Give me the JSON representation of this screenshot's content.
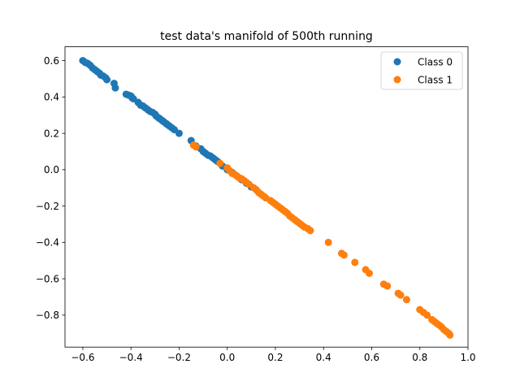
{
  "chart_data": {
    "type": "scatter",
    "title": "test data's manifold of 500th running",
    "xlabel": "",
    "ylabel": "",
    "xlim": [
      -0.674,
      1.0
    ],
    "ylim": [
      -0.976,
      0.676
    ],
    "xticks": [
      -0.6,
      -0.4,
      -0.2,
      0.0,
      0.2,
      0.4,
      0.6,
      0.8,
      1.0
    ],
    "yticks": [
      -0.8,
      -0.6,
      -0.4,
      -0.2,
      0.0,
      0.2,
      0.4,
      0.6
    ],
    "xtick_labels": [
      "−0.6",
      "−0.4",
      "−0.2",
      "0.0",
      "0.2",
      "0.4",
      "0.6",
      "0.8",
      "1.0"
    ],
    "ytick_labels": [
      "−0.8",
      "−0.6",
      "−0.4",
      "−0.2",
      "0.0",
      "0.2",
      "0.4",
      "0.6"
    ],
    "grid": false,
    "legend_position": "top-right",
    "series": [
      {
        "name": "Class 0",
        "color": "#1f77b4",
        "points": [
          [
            -0.6,
            0.6
          ],
          [
            -0.59,
            0.59
          ],
          [
            -0.58,
            0.585
          ],
          [
            -0.57,
            0.575
          ],
          [
            -0.56,
            0.56
          ],
          [
            -0.55,
            0.55
          ],
          [
            -0.54,
            0.54
          ],
          [
            -0.53,
            0.53
          ],
          [
            -0.525,
            0.52
          ],
          [
            -0.515,
            0.515
          ],
          [
            -0.505,
            0.505
          ],
          [
            -0.5,
            0.495
          ],
          [
            -0.47,
            0.475
          ],
          [
            -0.465,
            0.45
          ],
          [
            -0.42,
            0.415
          ],
          [
            -0.41,
            0.41
          ],
          [
            -0.4,
            0.405
          ],
          [
            -0.395,
            0.395
          ],
          [
            -0.39,
            0.39
          ],
          [
            -0.37,
            0.37
          ],
          [
            -0.36,
            0.355
          ],
          [
            -0.35,
            0.35
          ],
          [
            -0.34,
            0.34
          ],
          [
            -0.33,
            0.33
          ],
          [
            -0.32,
            0.32
          ],
          [
            -0.31,
            0.315
          ],
          [
            -0.3,
            0.305
          ],
          [
            -0.295,
            0.295
          ],
          [
            -0.285,
            0.285
          ],
          [
            -0.28,
            0.28
          ],
          [
            -0.27,
            0.27
          ],
          [
            -0.265,
            0.265
          ],
          [
            -0.255,
            0.255
          ],
          [
            -0.25,
            0.25
          ],
          [
            -0.24,
            0.24
          ],
          [
            -0.23,
            0.23
          ],
          [
            -0.22,
            0.22
          ],
          [
            -0.2,
            0.2
          ],
          [
            -0.15,
            0.16
          ],
          [
            -0.13,
            0.13
          ],
          [
            -0.11,
            0.115
          ],
          [
            -0.1,
            0.1
          ],
          [
            -0.09,
            0.09
          ],
          [
            -0.08,
            0.08
          ],
          [
            -0.07,
            0.075
          ],
          [
            -0.06,
            0.065
          ],
          [
            -0.05,
            0.055
          ],
          [
            -0.04,
            0.045
          ],
          [
            -0.02,
            0.02
          ],
          [
            0.0,
            0.0
          ],
          [
            0.02,
            -0.015
          ],
          [
            0.04,
            -0.035
          ],
          [
            0.06,
            -0.055
          ],
          [
            0.08,
            -0.075
          ],
          [
            0.1,
            -0.095
          ]
        ]
      },
      {
        "name": "Class 1",
        "color": "#ff7f0e",
        "points": [
          [
            -0.14,
            0.135
          ],
          [
            -0.13,
            0.125
          ],
          [
            -0.03,
            0.035
          ],
          [
            0.0,
            0.01
          ],
          [
            0.01,
            -0.005
          ],
          [
            0.02,
            -0.02
          ],
          [
            0.03,
            -0.025
          ],
          [
            0.04,
            -0.035
          ],
          [
            0.05,
            -0.045
          ],
          [
            0.06,
            -0.05
          ],
          [
            0.07,
            -0.06
          ],
          [
            0.08,
            -0.07
          ],
          [
            0.09,
            -0.08
          ],
          [
            0.11,
            -0.1
          ],
          [
            0.12,
            -0.11
          ],
          [
            0.13,
            -0.125
          ],
          [
            0.14,
            -0.135
          ],
          [
            0.15,
            -0.145
          ],
          [
            0.16,
            -0.155
          ],
          [
            0.18,
            -0.17
          ],
          [
            0.19,
            -0.18
          ],
          [
            0.2,
            -0.19
          ],
          [
            0.21,
            -0.2
          ],
          [
            0.22,
            -0.21
          ],
          [
            0.23,
            -0.22
          ],
          [
            0.24,
            -0.23
          ],
          [
            0.25,
            -0.24
          ],
          [
            0.26,
            -0.255
          ],
          [
            0.27,
            -0.265
          ],
          [
            0.28,
            -0.275
          ],
          [
            0.29,
            -0.285
          ],
          [
            0.3,
            -0.295
          ],
          [
            0.31,
            -0.305
          ],
          [
            0.32,
            -0.315
          ],
          [
            0.335,
            -0.325
          ],
          [
            0.345,
            -0.335
          ],
          [
            0.42,
            -0.4
          ],
          [
            0.475,
            -0.46
          ],
          [
            0.485,
            -0.47
          ],
          [
            0.53,
            -0.51
          ],
          [
            0.575,
            -0.55
          ],
          [
            0.59,
            -0.57
          ],
          [
            0.65,
            -0.63
          ],
          [
            0.665,
            -0.64
          ],
          [
            0.71,
            -0.68
          ],
          [
            0.72,
            -0.69
          ],
          [
            0.745,
            -0.715
          ],
          [
            0.8,
            -0.77
          ],
          [
            0.815,
            -0.785
          ],
          [
            0.83,
            -0.8
          ],
          [
            0.85,
            -0.825
          ],
          [
            0.86,
            -0.835
          ],
          [
            0.87,
            -0.845
          ],
          [
            0.88,
            -0.855
          ],
          [
            0.89,
            -0.865
          ],
          [
            0.9,
            -0.88
          ],
          [
            0.91,
            -0.89
          ],
          [
            0.92,
            -0.9
          ],
          [
            0.925,
            -0.91
          ]
        ]
      }
    ]
  }
}
